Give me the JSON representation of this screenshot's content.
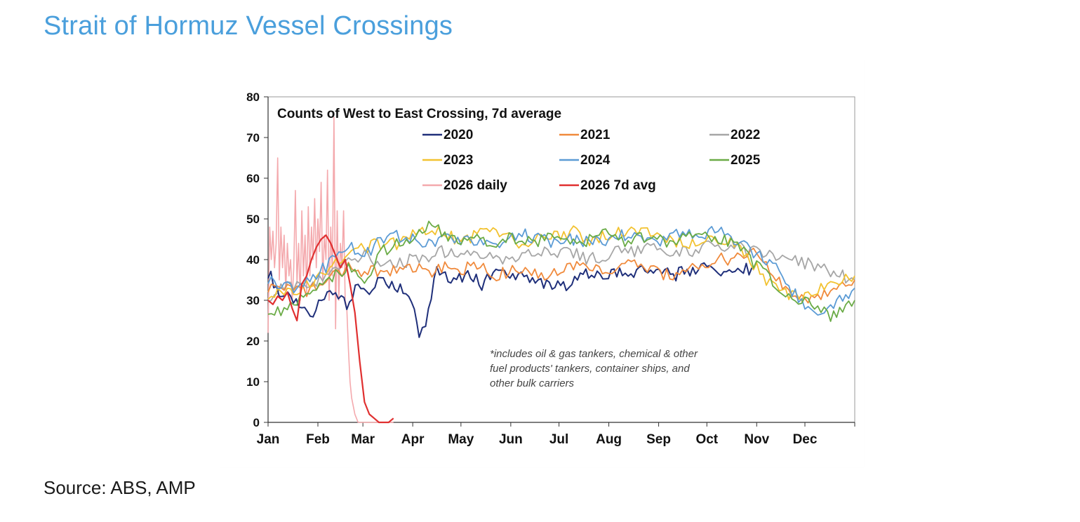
{
  "page": {
    "title": "Strait of Hormuz Vessel Crossings",
    "source": "Source: ABS, AMP"
  },
  "chart_data": {
    "type": "line",
    "title": "Counts of West to East Crossing, 7d average",
    "xlabel": "",
    "ylabel": "",
    "x_unit": "day of year",
    "xlim": [
      0,
      365
    ],
    "ylim": [
      0,
      80
    ],
    "yticks": [
      0,
      10,
      20,
      30,
      40,
      50,
      60,
      70,
      80
    ],
    "month_ticks": [
      {
        "label": "Jan",
        "day": 0
      },
      {
        "label": "Feb",
        "day": 31
      },
      {
        "label": "Mar",
        "day": 59
      },
      {
        "label": "Apr",
        "day": 90
      },
      {
        "label": "May",
        "day": 120
      },
      {
        "label": "Jun",
        "day": 151
      },
      {
        "label": "Jul",
        "day": 181
      },
      {
        "label": "Aug",
        "day": 212
      },
      {
        "label": "Sep",
        "day": 243
      },
      {
        "label": "Oct",
        "day": 273
      },
      {
        "label": "Nov",
        "day": 304
      },
      {
        "label": "Dec",
        "day": 334
      }
    ],
    "annotation": {
      "lines": [
        "*includes oil & gas tankers, chemical & other",
        "fuel products' tankers, container ships, and",
        "other bulk carriers"
      ]
    },
    "grid": false,
    "legend_position": "top-right inside plot",
    "series": [
      {
        "name": "2020",
        "color": "#1f2f7a",
        "width": 2,
        "x": [
          0,
          7,
          14,
          21,
          28,
          35,
          42,
          49,
          56,
          63,
          70,
          77,
          84,
          91,
          94,
          98,
          105,
          112,
          119,
          126,
          133,
          140,
          147,
          154,
          161,
          168,
          175,
          182,
          189,
          196,
          203,
          210,
          217,
          224,
          231,
          238,
          245,
          252,
          259,
          266,
          273,
          280,
          287,
          294,
          301
        ],
        "y": [
          37,
          32,
          30,
          28,
          27,
          30,
          32,
          29,
          34,
          33,
          36,
          34,
          33,
          29,
          20,
          25,
          37,
          36,
          35,
          36,
          34,
          37,
          36,
          35,
          36,
          35,
          34,
          33,
          35,
          37,
          36,
          36,
          37,
          36,
          38,
          37,
          37,
          36,
          37,
          38,
          39,
          37,
          38,
          37,
          38
        ]
      },
      {
        "name": "2021",
        "color": "#f08a3c",
        "width": 1.8,
        "x": [
          0,
          10,
          20,
          30,
          40,
          50,
          60,
          70,
          80,
          90,
          100,
          110,
          120,
          130,
          140,
          150,
          160,
          170,
          180,
          190,
          200,
          210,
          220,
          230,
          240,
          250,
          260,
          270,
          280,
          290,
          300,
          310,
          320,
          330,
          340,
          350,
          365
        ],
        "y": [
          33,
          34,
          32,
          33,
          36,
          38,
          37,
          37,
          38,
          38,
          37,
          38,
          37,
          39,
          36,
          37,
          38,
          36,
          37,
          39,
          37,
          38,
          38,
          39,
          37,
          36,
          38,
          39,
          40,
          40,
          42,
          39,
          34,
          31,
          30,
          32,
          35
        ]
      },
      {
        "name": "2022",
        "color": "#a6a6a6",
        "width": 1.8,
        "x": [
          0,
          10,
          20,
          30,
          40,
          50,
          60,
          70,
          80,
          90,
          100,
          110,
          120,
          130,
          140,
          150,
          160,
          170,
          180,
          190,
          200,
          210,
          220,
          230,
          240,
          250,
          260,
          270,
          280,
          290,
          300,
          310,
          320,
          330,
          340,
          350,
          365
        ],
        "y": [
          31,
          33,
          34,
          35,
          38,
          40,
          41,
          38,
          39,
          40,
          41,
          42,
          41,
          42,
          41,
          40,
          41,
          42,
          41,
          42,
          40,
          41,
          42,
          42,
          43,
          41,
          42,
          43,
          43,
          43,
          42,
          41,
          41,
          40,
          38,
          37,
          35
        ]
      },
      {
        "name": "2023",
        "color": "#f2c230",
        "width": 1.8,
        "x": [
          0,
          10,
          20,
          30,
          40,
          50,
          60,
          70,
          80,
          90,
          100,
          110,
          120,
          130,
          140,
          150,
          160,
          170,
          180,
          190,
          200,
          210,
          220,
          230,
          240,
          250,
          260,
          270,
          280,
          290,
          300,
          310,
          320,
          330,
          340,
          350,
          365
        ],
        "y": [
          31,
          32,
          33,
          35,
          39,
          42,
          43,
          44,
          44,
          46,
          48,
          46,
          45,
          46,
          47,
          45,
          44,
          45,
          46,
          47,
          45,
          46,
          47,
          46,
          47,
          45,
          44,
          45,
          45,
          44,
          40,
          35,
          32,
          31,
          32,
          34,
          36
        ]
      },
      {
        "name": "2024",
        "color": "#5b9bd5",
        "width": 1.8,
        "x": [
          0,
          10,
          20,
          30,
          40,
          50,
          60,
          70,
          80,
          90,
          100,
          110,
          120,
          130,
          140,
          150,
          160,
          170,
          180,
          190,
          200,
          210,
          220,
          230,
          240,
          250,
          260,
          270,
          280,
          290,
          300,
          310,
          320,
          330,
          340,
          350,
          365
        ],
        "y": [
          35,
          34,
          33,
          36,
          40,
          44,
          41,
          45,
          46,
          45,
          44,
          45,
          44,
          45,
          44,
          45,
          46,
          45,
          44,
          45,
          44,
          45,
          46,
          45,
          44,
          46,
          47,
          46,
          48,
          45,
          42,
          40,
          36,
          30,
          27,
          29,
          33
        ]
      },
      {
        "name": "2025",
        "color": "#6aab46",
        "width": 1.8,
        "x": [
          0,
          10,
          20,
          30,
          40,
          50,
          60,
          70,
          80,
          90,
          100,
          110,
          120,
          130,
          140,
          150,
          160,
          170,
          180,
          190,
          200,
          210,
          220,
          230,
          240,
          250,
          260,
          270,
          280,
          290,
          300,
          310,
          320,
          330,
          340,
          350,
          365
        ],
        "y": [
          28,
          27,
          30,
          32,
          36,
          38,
          35,
          42,
          44,
          45,
          49,
          46,
          45,
          46,
          44,
          45,
          44,
          45,
          46,
          44,
          45,
          46,
          44,
          45,
          46,
          44,
          45,
          46,
          45,
          44,
          40,
          36,
          33,
          30,
          29,
          26,
          30
        ]
      },
      {
        "name": "2026 daily",
        "color": "#f4a9ad",
        "width": 1.6,
        "x": [
          0,
          1,
          2,
          3,
          4,
          5,
          6,
          7,
          8,
          9,
          10,
          11,
          12,
          13,
          14,
          15,
          16,
          17,
          18,
          19,
          20,
          21,
          22,
          23,
          24,
          25,
          26,
          27,
          28,
          29,
          30,
          31,
          32,
          33,
          34,
          35,
          36,
          37,
          38,
          39,
          40,
          41,
          42,
          43,
          44,
          45,
          46,
          47,
          48,
          49,
          50,
          51,
          52,
          53,
          54,
          55,
          56,
          57,
          58,
          59,
          60,
          61,
          62,
          63,
          64,
          65,
          66,
          67,
          68,
          69,
          70,
          71,
          72,
          73,
          74,
          75,
          76,
          77,
          78
        ],
        "y": [
          22,
          48,
          40,
          47,
          38,
          44,
          65,
          35,
          48,
          38,
          46,
          32,
          44,
          36,
          40,
          30,
          38,
          57,
          34,
          44,
          30,
          52,
          36,
          46,
          32,
          53,
          36,
          48,
          40,
          55,
          38,
          50,
          42,
          59,
          34,
          46,
          40,
          62,
          30,
          48,
          36,
          75,
          23,
          52,
          30,
          44,
          38,
          52,
          30,
          28,
          18,
          10,
          6,
          4,
          2,
          1,
          0,
          0,
          0,
          0,
          0,
          0,
          0,
          0,
          0,
          0,
          0,
          0,
          0,
          0,
          0,
          0,
          0,
          0,
          0,
          0,
          0,
          0,
          0
        ]
      },
      {
        "name": "2026 7d avg",
        "color": "#e03030",
        "width": 2.2,
        "x": [
          0,
          3,
          6,
          9,
          12,
          15,
          18,
          21,
          24,
          27,
          30,
          33,
          36,
          39,
          42,
          45,
          48,
          51,
          54,
          57,
          60,
          63,
          66,
          69,
          72,
          75,
          78
        ],
        "y": [
          30,
          29,
          31,
          30,
          32,
          28,
          25,
          34,
          36,
          40,
          43,
          45,
          46,
          44,
          41,
          38,
          40,
          34,
          27,
          15,
          5,
          2,
          1,
          0,
          0,
          0,
          1
        ]
      }
    ]
  }
}
